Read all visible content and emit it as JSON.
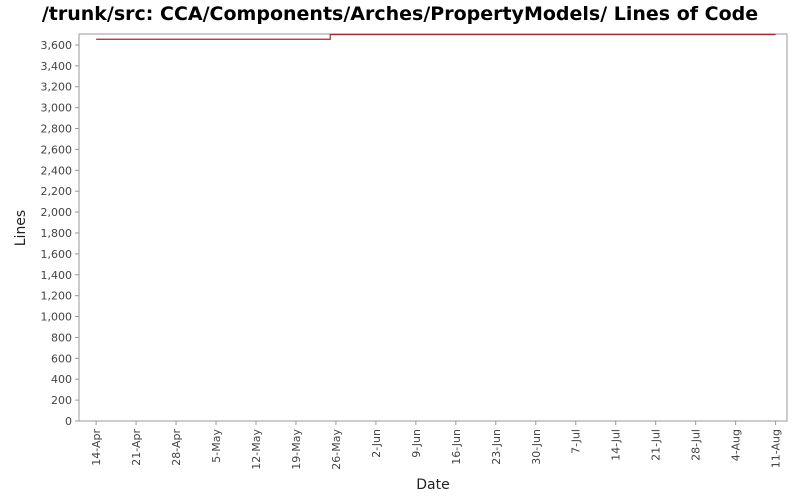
{
  "chart_data": {
    "type": "line",
    "title": "/trunk/src: CCA/Components/Arches/PropertyModels/ Lines of Code",
    "x_label": "Date",
    "y_label": "Lines",
    "x": [
      "14-Apr",
      "25-May",
      "11-Aug"
    ],
    "series": [
      {
        "name": "Lines",
        "color": "#a0282d",
        "values": [
          3655,
          3700,
          3700
        ],
        "step": "post"
      }
    ],
    "xlim": [
      "11-Apr",
      "13-Aug"
    ],
    "xticks": [
      "14-Apr",
      "21-Apr",
      "28-Apr",
      "5-May",
      "12-May",
      "19-May",
      "26-May",
      "2-Jun",
      "9-Jun",
      "16-Jun",
      "23-Jun",
      "30-Jun",
      "7-Jul",
      "14-Jul",
      "21-Jul",
      "28-Jul",
      "4-Aug",
      "11-Aug"
    ],
    "ylim": [
      0,
      3705
    ],
    "yticks": [
      0,
      200,
      400,
      600,
      800,
      {
        "value": 1000,
        "label": "1,000"
      },
      {
        "value": 1200,
        "label": "1,200"
      },
      {
        "value": 1400,
        "label": "1,400"
      },
      {
        "value": 1600,
        "label": "1,600"
      },
      {
        "value": 1800,
        "label": "1,800"
      },
      {
        "value": 2000,
        "label": "2,000"
      },
      {
        "value": 2200,
        "label": "2,200"
      },
      {
        "value": 2400,
        "label": "2,400"
      },
      {
        "value": 2600,
        "label": "2,600"
      },
      {
        "value": 2800,
        "label": "2,800"
      },
      {
        "value": 3000,
        "label": "3,000"
      },
      {
        "value": 3200,
        "label": "3,200"
      },
      {
        "value": 3400,
        "label": "3,400"
      },
      {
        "value": 3600,
        "label": "3,600"
      }
    ],
    "grid": false
  }
}
